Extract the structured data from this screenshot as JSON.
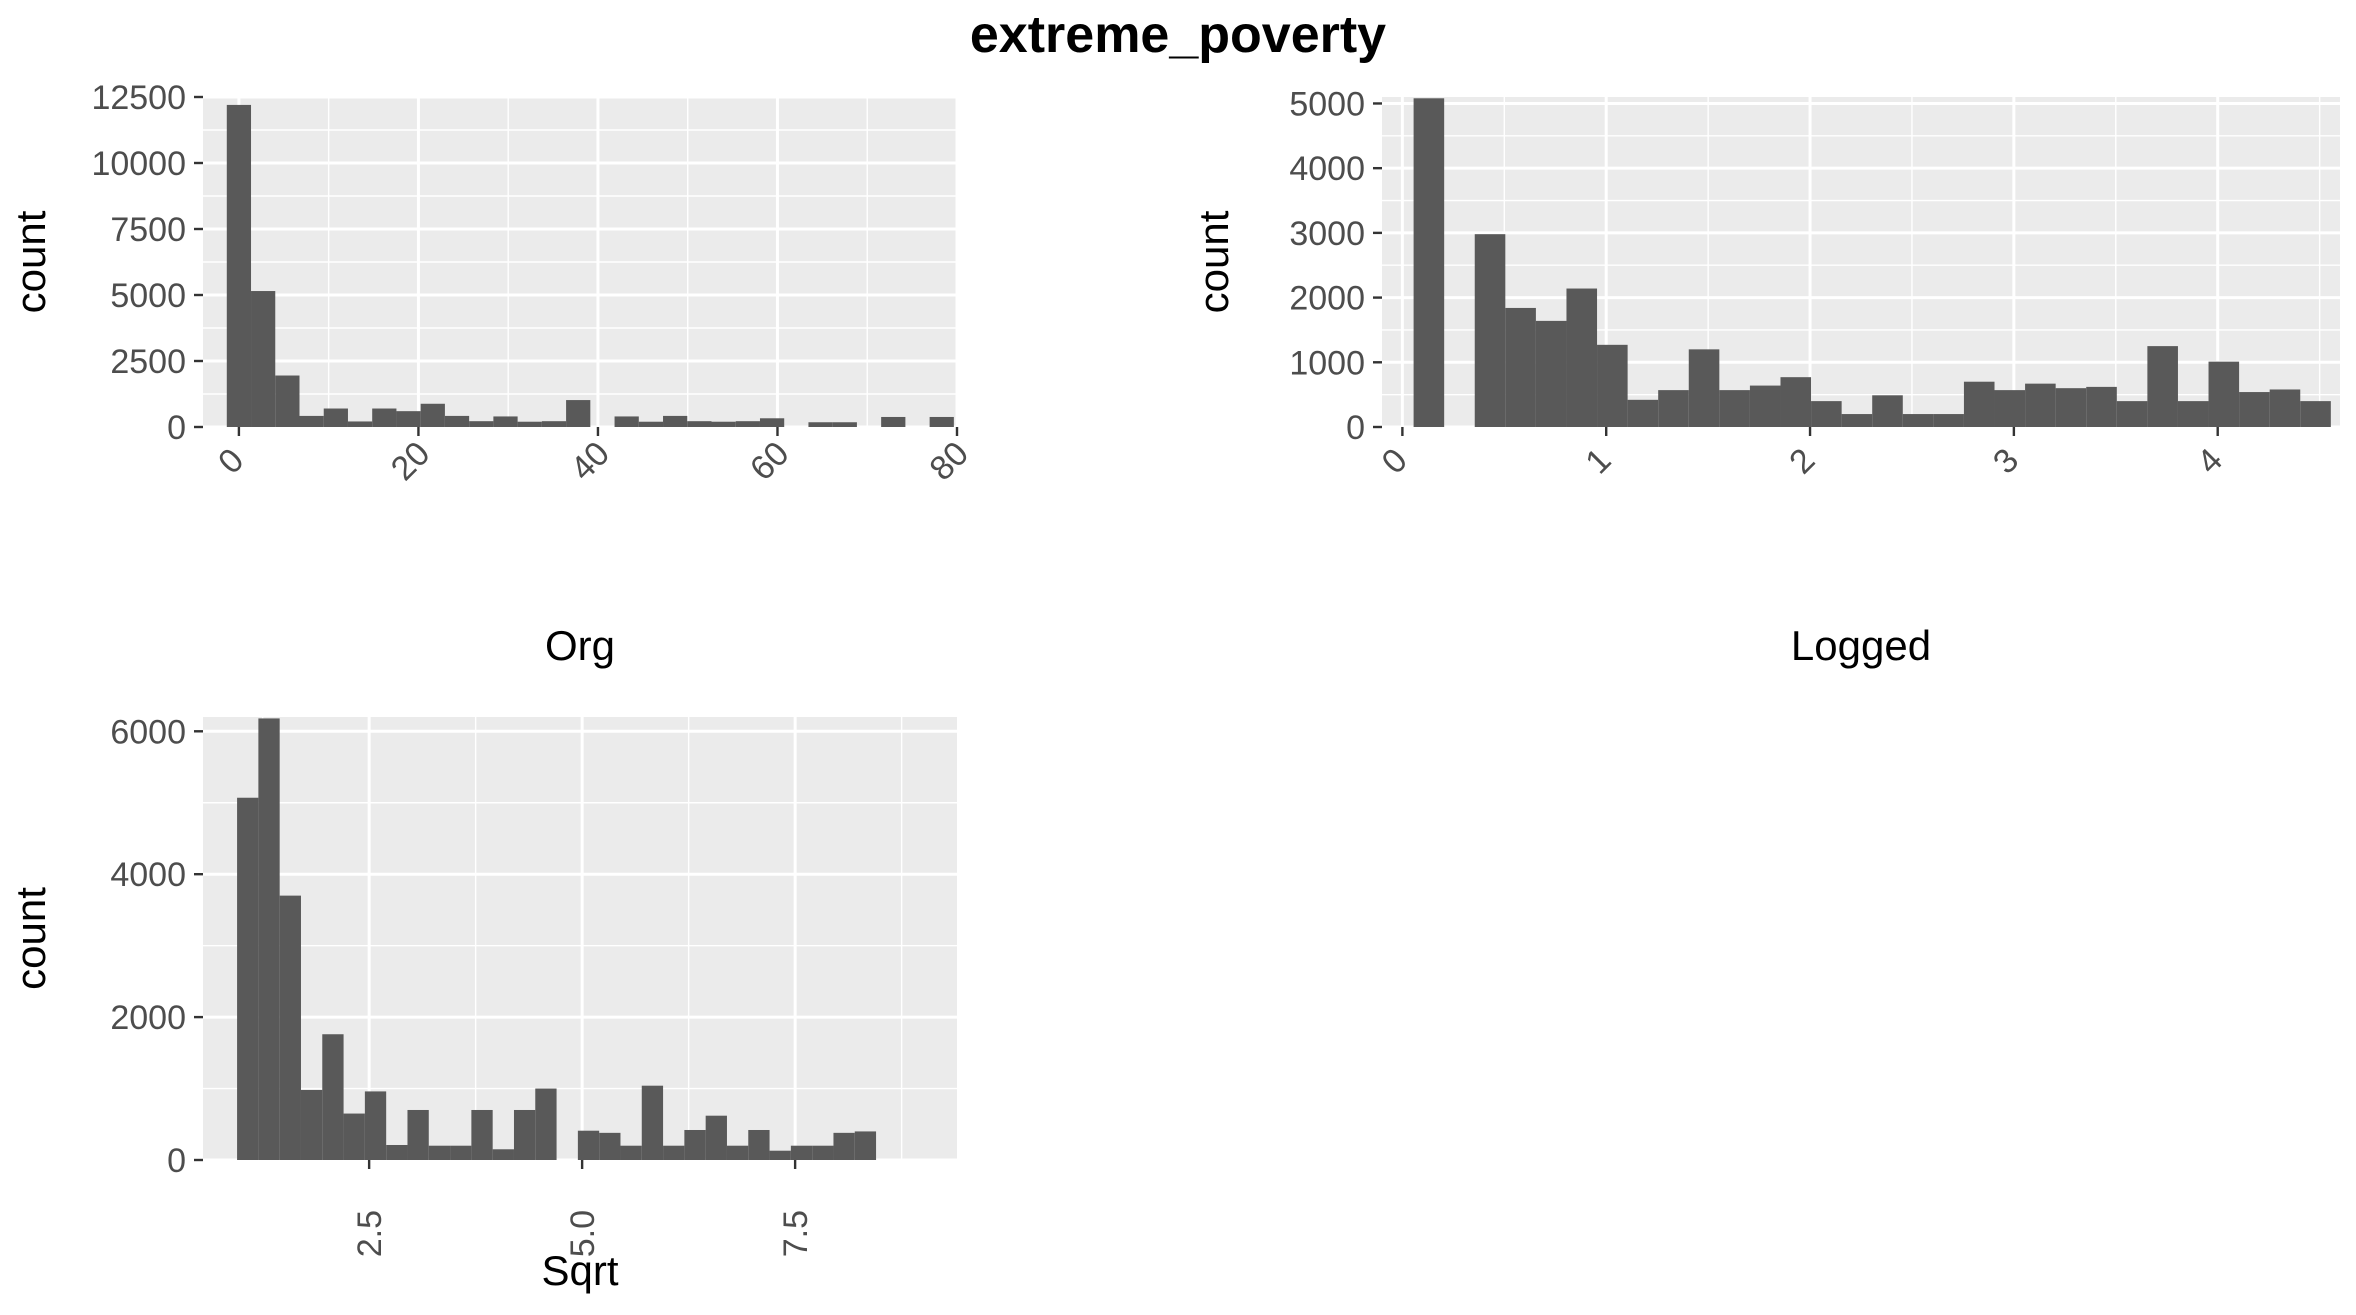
{
  "figure": {
    "title": "extreme_poverty"
  },
  "colors": {
    "panel_bg": "#ebebeb",
    "grid_major": "#ffffff",
    "bar_fill": "#595959",
    "tick_text": "#4d4d4d",
    "label_text": "#000000"
  },
  "chart_data": [
    {
      "type": "bar",
      "histogram": true,
      "title": "",
      "xlabel": "Org",
      "ylabel": "count",
      "xlim": [
        -4,
        80
      ],
      "ylim": [
        0,
        12500
      ],
      "x_ticks": [
        0,
        20,
        40,
        60,
        80
      ],
      "x_tick_labels": [
        "0",
        "20",
        "40",
        "60",
        "80"
      ],
      "x_tick_rotation": -45,
      "y_ticks": [
        0,
        2500,
        5000,
        7500,
        10000,
        12500
      ],
      "y_tick_labels": [
        "0",
        "2500",
        "5000",
        "7500",
        "10000",
        "12500"
      ],
      "grid": true,
      "bin_edges": [
        -1.35,
        1.35,
        4.05,
        6.75,
        9.45,
        12.15,
        14.85,
        17.55,
        20.25,
        22.95,
        25.65,
        28.35,
        31.05,
        33.75,
        36.45,
        39.15,
        41.85,
        44.55,
        47.25,
        49.95,
        52.65,
        55.35,
        58.05,
        60.75,
        63.45,
        66.15,
        68.85,
        71.55,
        74.25,
        76.95,
        79.65
      ],
      "values": [
        12200,
        5150,
        1950,
        420,
        700,
        210,
        700,
        600,
        880,
        420,
        220,
        400,
        200,
        220,
        1020,
        0,
        400,
        200,
        420,
        220,
        200,
        220,
        330,
        0,
        180,
        180,
        0,
        380,
        0,
        380
      ]
    },
    {
      "type": "bar",
      "histogram": true,
      "title": "",
      "xlabel": "Logged",
      "ylabel": "count",
      "xlim": [
        -0.1,
        4.6
      ],
      "ylim": [
        0,
        5100
      ],
      "x_ticks": [
        0,
        1,
        2,
        3,
        4
      ],
      "x_tick_labels": [
        "0",
        "1",
        "2",
        "3",
        "4"
      ],
      "x_tick_rotation": -45,
      "y_ticks": [
        0,
        1000,
        2000,
        3000,
        4000,
        5000
      ],
      "y_tick_labels": [
        "0",
        "1000",
        "2000",
        "3000",
        "4000",
        "5000"
      ],
      "grid": true,
      "bin_edges": [
        0.055,
        0.205,
        0.355,
        0.505,
        0.655,
        0.805,
        0.955,
        1.105,
        1.255,
        1.405,
        1.555,
        1.705,
        1.855,
        2.005,
        2.155,
        2.305,
        2.455,
        2.605,
        2.755,
        2.905,
        3.055,
        3.205,
        3.355,
        3.505,
        3.655,
        3.805,
        3.955,
        4.105,
        4.255,
        4.405,
        4.555
      ],
      "values": [
        5080,
        0,
        2980,
        1840,
        1640,
        2140,
        1270,
        420,
        570,
        1200,
        570,
        640,
        770,
        400,
        200,
        490,
        200,
        200,
        700,
        570,
        670,
        600,
        620,
        400,
        1250,
        400,
        1010,
        540,
        580,
        400
      ]
    },
    {
      "type": "bar",
      "histogram": true,
      "title": "",
      "xlabel": "Sqrt",
      "ylabel": "count",
      "xlim": [
        0.55,
        9.4
      ],
      "ylim": [
        0,
        6200
      ],
      "x_ticks": [
        2.5,
        5.0,
        7.5
      ],
      "x_tick_labels": [
        "2.5",
        "5.0",
        "7.5"
      ],
      "x_tick_rotation": -90,
      "y_ticks": [
        0,
        2000,
        4000,
        6000
      ],
      "y_tick_labels": [
        "0",
        "2000",
        "4000",
        "6000"
      ],
      "grid": true,
      "bin_edges": [
        0.95,
        1.2,
        1.45,
        1.7,
        1.95,
        2.2,
        2.45,
        2.7,
        2.95,
        3.2,
        3.45,
        3.7,
        3.95,
        4.2,
        4.45,
        4.7,
        4.95,
        5.2,
        5.45,
        5.7,
        5.95,
        6.2,
        6.45,
        6.7,
        6.95,
        7.2,
        7.45,
        7.7,
        7.95,
        8.2,
        8.45,
        8.7,
        8.95
      ],
      "values": [
        5070,
        6180,
        3700,
        980,
        1760,
        650,
        960,
        210,
        700,
        200,
        200,
        700,
        150,
        700,
        1000,
        0,
        410,
        380,
        200,
        1040,
        200,
        420,
        620,
        200,
        420,
        130,
        200,
        200,
        380,
        400,
        0,
        0
      ]
    }
  ]
}
